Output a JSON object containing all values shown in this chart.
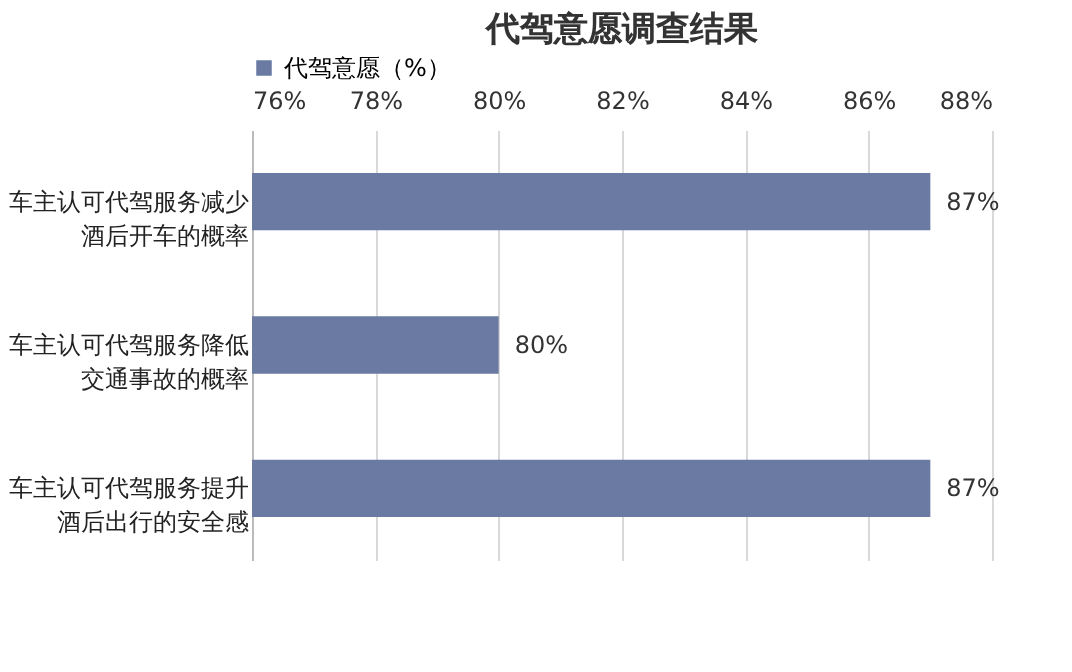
{
  "chart_data": {
    "type": "bar",
    "orientation": "horizontal",
    "title": "代驾意愿调查结果",
    "categories": [
      "车主认可代驾服务减少酒后开车的概率",
      "车主认可代驾服务降低交通事故的概率",
      "车主认可代驾服务提升酒后出行的安全感"
    ],
    "series": [
      {
        "name": "代驾意愿（%）",
        "color": "#6b7aa3",
        "values": [
          87,
          80,
          87
        ],
        "value_labels": [
          "87%",
          "80%",
          "87%"
        ]
      }
    ],
    "xlim": [
      76,
      88
    ],
    "xticks": [
      {
        "value": 76,
        "label": "76%"
      },
      {
        "value": 78,
        "label": "78%"
      },
      {
        "value": 80,
        "label": "80%"
      },
      {
        "value": 82,
        "label": "82%"
      },
      {
        "value": 84,
        "label": "84%"
      },
      {
        "value": 86,
        "label": "86%"
      },
      {
        "value": 88,
        "label": "88%"
      }
    ],
    "grid": "x",
    "legend": "top"
  }
}
